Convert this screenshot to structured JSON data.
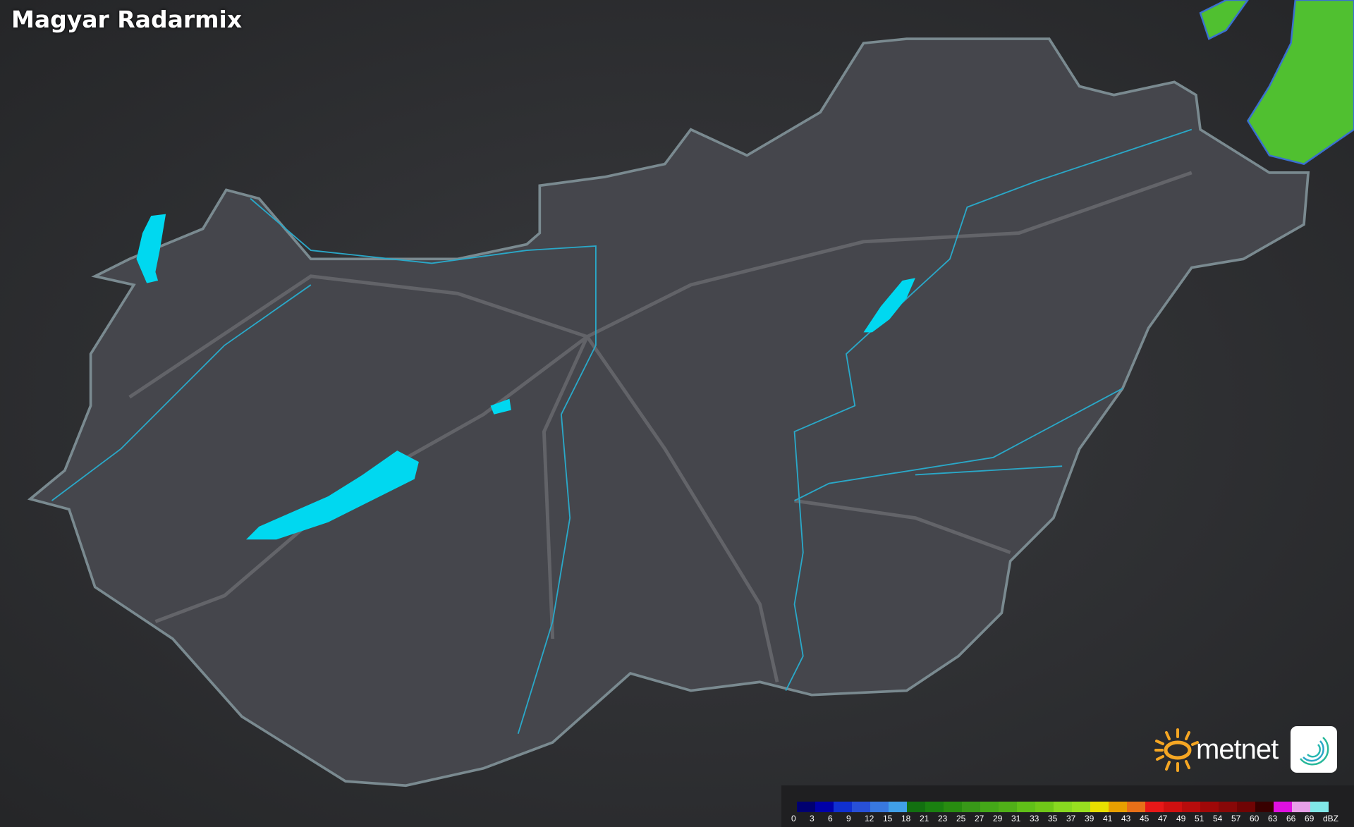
{
  "title": "Magyar Radarmix",
  "legend": {
    "unit": "dBZ",
    "labels": [
      "0",
      "3",
      "6",
      "9",
      "12",
      "15",
      "18",
      "21",
      "23",
      "25",
      "27",
      "29",
      "31",
      "33",
      "35",
      "37",
      "39",
      "41",
      "43",
      "45",
      "47",
      "49",
      "51",
      "54",
      "57",
      "60",
      "63",
      "66",
      "69"
    ],
    "colors": [
      "#000070",
      "#0000a8",
      "#1030d0",
      "#2850d8",
      "#3878e0",
      "#40a0e8",
      "#127010",
      "#1a8010",
      "#288c10",
      "#389818",
      "#44a818",
      "#50b018",
      "#60c018",
      "#70c818",
      "#88d820",
      "#98e020",
      "#e8e000",
      "#e8a000",
      "#e87018",
      "#e81818",
      "#d01010",
      "#b80c0c",
      "#a00808",
      "#880808",
      "#700404",
      "#380000",
      "#e010e0",
      "#e8a0e8",
      "#80e8e8"
    ]
  },
  "brand": {
    "name": "metnet",
    "sun_color": "#f5a623"
  },
  "colors": {
    "water": "#00d8f0",
    "border": "#7a8a90",
    "radar": "#50c030"
  }
}
